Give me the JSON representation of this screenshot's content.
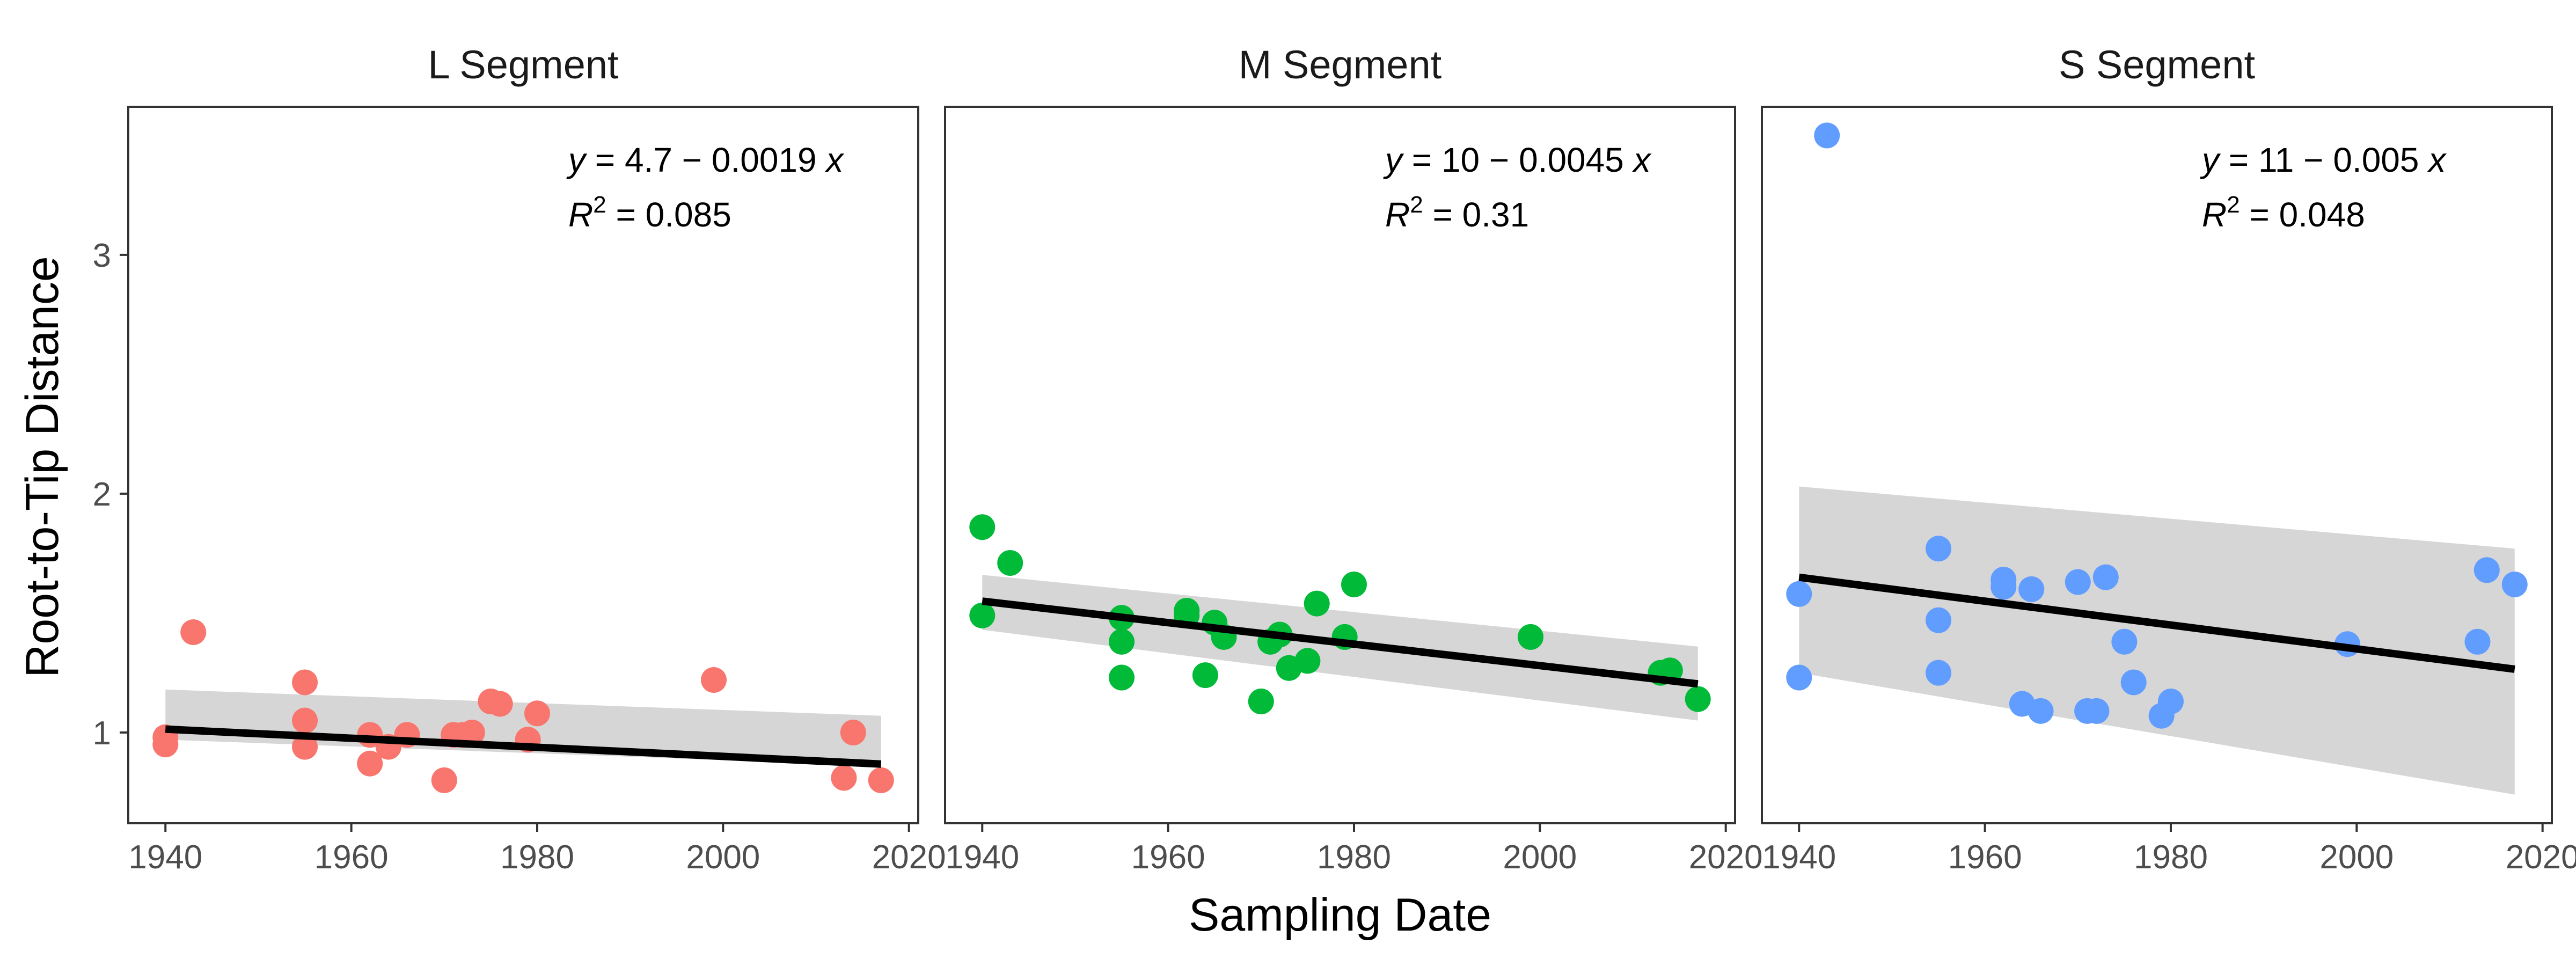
{
  "chart_data": {
    "type": "scatter",
    "xlabel": "Sampling Date",
    "ylabel": "Root-to-Tip Distance",
    "xlim": [
      1936,
      2021
    ],
    "ylim": [
      0.62,
      3.62
    ],
    "x_ticks": [
      1940,
      1960,
      1980,
      2000,
      2020
    ],
    "y_ticks": [
      1,
      2,
      3
    ],
    "grid": false,
    "legend": "none",
    "panels": [
      {
        "name": "L Segment",
        "color": "#F8766D",
        "annotation": {
          "equation_lhs": "y",
          "equation_rhs": " = 4.7 − 0.0019 ",
          "equation_var": "x",
          "r2_label": "R",
          "r2_value": " = 0.085"
        },
        "fit": {
          "intercept": 4.7,
          "slope": -0.0019,
          "x_range": [
            1940,
            2017
          ],
          "ci_lower": [
            0.97,
            0.86
          ],
          "ci_upper": [
            1.18,
            1.07
          ]
        },
        "points": [
          {
            "x": 1940,
            "y": 0.98
          },
          {
            "x": 1940,
            "y": 0.95
          },
          {
            "x": 1943,
            "y": 1.42
          },
          {
            "x": 1955,
            "y": 1.21
          },
          {
            "x": 1955,
            "y": 1.05
          },
          {
            "x": 1955,
            "y": 0.94
          },
          {
            "x": 1962,
            "y": 0.99
          },
          {
            "x": 1962,
            "y": 0.87
          },
          {
            "x": 1964,
            "y": 0.94
          },
          {
            "x": 1966,
            "y": 0.99
          },
          {
            "x": 1970,
            "y": 0.8
          },
          {
            "x": 1971,
            "y": 0.99
          },
          {
            "x": 1972,
            "y": 0.99
          },
          {
            "x": 1973,
            "y": 1.0
          },
          {
            "x": 1975,
            "y": 1.13
          },
          {
            "x": 1976,
            "y": 1.12
          },
          {
            "x": 1979,
            "y": 0.97
          },
          {
            "x": 1980,
            "y": 1.08
          },
          {
            "x": 1999,
            "y": 1.22
          },
          {
            "x": 2013,
            "y": 0.81
          },
          {
            "x": 2014,
            "y": 1.0
          },
          {
            "x": 2017,
            "y": 0.8
          }
        ]
      },
      {
        "name": "M Segment",
        "color": "#00BA38",
        "annotation": {
          "equation_lhs": "y",
          "equation_rhs": " = 10 − 0.0045 ",
          "equation_var": "x",
          "r2_label": "R",
          "r2_value": " = 0.31"
        },
        "fit": {
          "intercept": 10.28,
          "slope": -0.0045,
          "x_range": [
            1940,
            2017
          ],
          "ci_lower": [
            1.43,
            1.05
          ],
          "ci_upper": [
            1.66,
            1.36
          ]
        },
        "points": [
          {
            "x": 1940,
            "y": 1.86
          },
          {
            "x": 1940,
            "y": 1.49
          },
          {
            "x": 1943,
            "y": 1.71
          },
          {
            "x": 1955,
            "y": 1.48
          },
          {
            "x": 1955,
            "y": 1.38
          },
          {
            "x": 1955,
            "y": 1.23
          },
          {
            "x": 1962,
            "y": 1.51
          },
          {
            "x": 1962,
            "y": 1.49
          },
          {
            "x": 1964,
            "y": 1.24
          },
          {
            "x": 1965,
            "y": 1.46
          },
          {
            "x": 1966,
            "y": 1.4
          },
          {
            "x": 1970,
            "y": 1.13
          },
          {
            "x": 1971,
            "y": 1.38
          },
          {
            "x": 1972,
            "y": 1.41
          },
          {
            "x": 1973,
            "y": 1.27
          },
          {
            "x": 1975,
            "y": 1.3
          },
          {
            "x": 1976,
            "y": 1.54
          },
          {
            "x": 1979,
            "y": 1.4
          },
          {
            "x": 1980,
            "y": 1.62
          },
          {
            "x": 1999,
            "y": 1.4
          },
          {
            "x": 2013,
            "y": 1.25
          },
          {
            "x": 2014,
            "y": 1.26
          },
          {
            "x": 2017,
            "y": 1.14
          }
        ]
      },
      {
        "name": "S Segment",
        "color": "#619CFF",
        "annotation": {
          "equation_lhs": "y",
          "equation_rhs": " = 11 − 0.005 ",
          "equation_var": "x",
          "r2_label": "R",
          "r2_value": " = 0.048"
        },
        "fit": {
          "intercept": 11.35,
          "slope": -0.005,
          "x_range": [
            1940,
            2017
          ],
          "ci_lower": [
            1.25,
            0.74
          ],
          "ci_upper": [
            2.03,
            1.77
          ]
        },
        "points": [
          {
            "x": 1940,
            "y": 1.58
          },
          {
            "x": 1940,
            "y": 1.23
          },
          {
            "x": 1943,
            "y": 3.5
          },
          {
            "x": 1955,
            "y": 1.77
          },
          {
            "x": 1955,
            "y": 1.47
          },
          {
            "x": 1955,
            "y": 1.25
          },
          {
            "x": 1962,
            "y": 1.64
          },
          {
            "x": 1962,
            "y": 1.61
          },
          {
            "x": 1964,
            "y": 1.12
          },
          {
            "x": 1965,
            "y": 1.6
          },
          {
            "x": 1966,
            "y": 1.09
          },
          {
            "x": 1970,
            "y": 1.63
          },
          {
            "x": 1971,
            "y": 1.09
          },
          {
            "x": 1972,
            "y": 1.09
          },
          {
            "x": 1973,
            "y": 1.65
          },
          {
            "x": 1975,
            "y": 1.38
          },
          {
            "x": 1976,
            "y": 1.21
          },
          {
            "x": 1979,
            "y": 1.07
          },
          {
            "x": 1980,
            "y": 1.13
          },
          {
            "x": 1999,
            "y": 1.37
          },
          {
            "x": 2013,
            "y": 1.38
          },
          {
            "x": 2014,
            "y": 1.68
          },
          {
            "x": 2017,
            "y": 1.62
          }
        ]
      }
    ]
  }
}
